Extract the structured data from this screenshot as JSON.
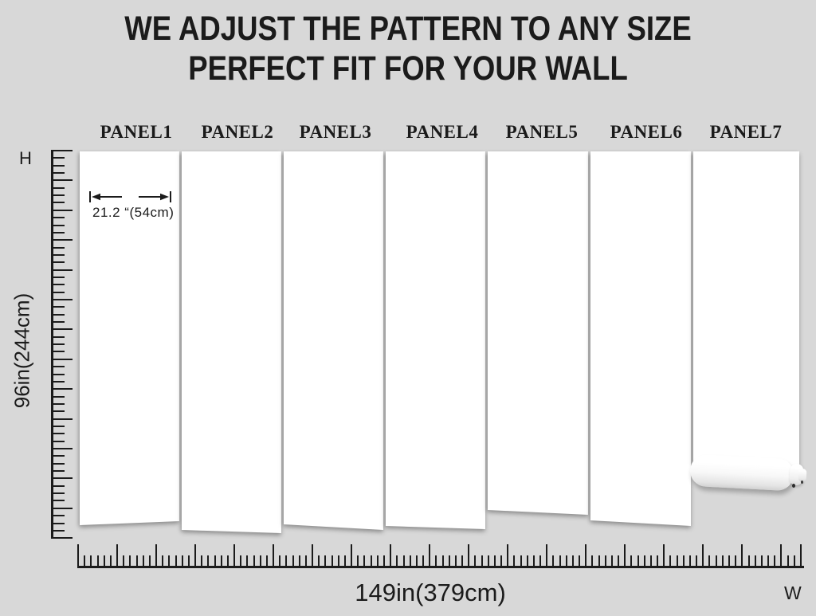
{
  "title": {
    "line1": "WE ADJUST THE PATTERN TO ANY SIZE",
    "line2": "PERFECT FIT FOR YOUR WALL"
  },
  "panels": [
    {
      "label": "PANEL1"
    },
    {
      "label": "PANEL2"
    },
    {
      "label": "PANEL3"
    },
    {
      "label": "PANEL4"
    },
    {
      "label": "PANEL5"
    },
    {
      "label": "PANEL6"
    },
    {
      "label": "PANEL7"
    }
  ],
  "annotations": {
    "panel_width": "21.2 “(54cm)",
    "wall_height": "96in(244cm)",
    "wall_width": "149in(379cm)",
    "height_axis": "H",
    "width_axis": "W"
  },
  "colors": {
    "background": "#d8d8d8",
    "ink": "#1b1b1b",
    "panel": "#ffffff"
  }
}
